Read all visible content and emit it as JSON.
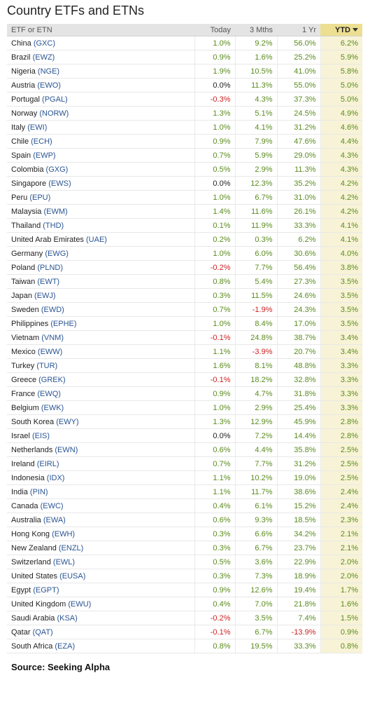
{
  "title": "Country ETFs and ETNs",
  "columns": {
    "etf": "ETF or ETN",
    "today": "Today",
    "mths3": "3 Mths",
    "yr1": "1 Yr",
    "ytd": "YTD"
  },
  "rows": [
    {
      "country": "China",
      "ticker": "(GXC)",
      "today": "1.0%",
      "mths3": "9.2%",
      "yr1": "56.0%",
      "ytd": "6.2%"
    },
    {
      "country": "Brazil",
      "ticker": "(EWZ)",
      "today": "0.9%",
      "mths3": "1.6%",
      "yr1": "25.2%",
      "ytd": "5.9%"
    },
    {
      "country": "Nigeria",
      "ticker": "(NGE)",
      "today": "1.9%",
      "mths3": "10.5%",
      "yr1": "41.0%",
      "ytd": "5.8%"
    },
    {
      "country": "Austria",
      "ticker": "(EWO)",
      "today": "0.0%",
      "mths3": "11.3%",
      "yr1": "55.0%",
      "ytd": "5.0%"
    },
    {
      "country": "Portugal",
      "ticker": "(PGAL)",
      "today": "-0.3%",
      "mths3": "4.3%",
      "yr1": "37.3%",
      "ytd": "5.0%"
    },
    {
      "country": "Norway",
      "ticker": "(NORW)",
      "today": "1.3%",
      "mths3": "5.1%",
      "yr1": "24.5%",
      "ytd": "4.9%"
    },
    {
      "country": "Italy",
      "ticker": "(EWI)",
      "today": "1.0%",
      "mths3": "4.1%",
      "yr1": "31.2%",
      "ytd": "4.6%"
    },
    {
      "country": "Chile",
      "ticker": "(ECH)",
      "today": "0.9%",
      "mths3": "7.9%",
      "yr1": "47.6%",
      "ytd": "4.4%"
    },
    {
      "country": "Spain",
      "ticker": "(EWP)",
      "today": "0.7%",
      "mths3": "5.9%",
      "yr1": "29.0%",
      "ytd": "4.3%"
    },
    {
      "country": "Colombia",
      "ticker": "(GXG)",
      "today": "0.5%",
      "mths3": "2.9%",
      "yr1": "11.3%",
      "ytd": "4.3%"
    },
    {
      "country": "Singapore",
      "ticker": "(EWS)",
      "today": "0.0%",
      "mths3": "12.3%",
      "yr1": "35.2%",
      "ytd": "4.2%"
    },
    {
      "country": "Peru",
      "ticker": "(EPU)",
      "today": "1.0%",
      "mths3": "6.7%",
      "yr1": "31.0%",
      "ytd": "4.2%"
    },
    {
      "country": "Malaysia",
      "ticker": "(EWM)",
      "today": "1.4%",
      "mths3": "11.6%",
      "yr1": "26.1%",
      "ytd": "4.2%"
    },
    {
      "country": "Thailand",
      "ticker": "(THD)",
      "today": "0.1%",
      "mths3": "11.9%",
      "yr1": "33.3%",
      "ytd": "4.1%"
    },
    {
      "country": "United Arab Emirates",
      "ticker": "(UAE)",
      "today": "0.2%",
      "mths3": "0.3%",
      "yr1": "6.2%",
      "ytd": "4.1%"
    },
    {
      "country": "Germany",
      "ticker": "(EWG)",
      "today": "1.0%",
      "mths3": "6.0%",
      "yr1": "30.6%",
      "ytd": "4.0%"
    },
    {
      "country": "Poland",
      "ticker": "(PLND)",
      "today": "-0.2%",
      "mths3": "7.7%",
      "yr1": "56.4%",
      "ytd": "3.8%"
    },
    {
      "country": "Taiwan",
      "ticker": "(EWT)",
      "today": "0.8%",
      "mths3": "5.4%",
      "yr1": "27.3%",
      "ytd": "3.5%"
    },
    {
      "country": "Japan",
      "ticker": "(EWJ)",
      "today": "0.3%",
      "mths3": "11.5%",
      "yr1": "24.6%",
      "ytd": "3.5%"
    },
    {
      "country": "Sweden",
      "ticker": "(EWD)",
      "today": "0.7%",
      "mths3": "-1.9%",
      "yr1": "24.3%",
      "ytd": "3.5%"
    },
    {
      "country": "Philippines",
      "ticker": "(EPHE)",
      "today": "1.0%",
      "mths3": "8.4%",
      "yr1": "17.0%",
      "ytd": "3.5%"
    },
    {
      "country": "Vietnam",
      "ticker": "(VNM)",
      "today": "-0.1%",
      "mths3": "24.8%",
      "yr1": "38.7%",
      "ytd": "3.4%"
    },
    {
      "country": "Mexico",
      "ticker": "(EWW)",
      "today": "1.1%",
      "mths3": "-3.9%",
      "yr1": "20.7%",
      "ytd": "3.4%"
    },
    {
      "country": "Turkey",
      "ticker": "(TUR)",
      "today": "1.6%",
      "mths3": "8.1%",
      "yr1": "48.8%",
      "ytd": "3.3%"
    },
    {
      "country": "Greece",
      "ticker": "(GREK)",
      "today": "-0.1%",
      "mths3": "18.2%",
      "yr1": "32.8%",
      "ytd": "3.3%"
    },
    {
      "country": "France",
      "ticker": "(EWQ)",
      "today": "0.9%",
      "mths3": "4.7%",
      "yr1": "31.8%",
      "ytd": "3.3%"
    },
    {
      "country": "Belgium",
      "ticker": "(EWK)",
      "today": "1.0%",
      "mths3": "2.9%",
      "yr1": "25.4%",
      "ytd": "3.3%"
    },
    {
      "country": "South Korea",
      "ticker": "(EWY)",
      "today": "1.3%",
      "mths3": "12.9%",
      "yr1": "45.9%",
      "ytd": "2.8%"
    },
    {
      "country": "Israel",
      "ticker": "(EIS)",
      "today": "0.0%",
      "mths3": "7.2%",
      "yr1": "14.4%",
      "ytd": "2.8%"
    },
    {
      "country": "Netherlands",
      "ticker": "(EWN)",
      "today": "0.6%",
      "mths3": "4.4%",
      "yr1": "35.8%",
      "ytd": "2.5%"
    },
    {
      "country": "Ireland",
      "ticker": "(EIRL)",
      "today": "0.7%",
      "mths3": "7.7%",
      "yr1": "31.2%",
      "ytd": "2.5%"
    },
    {
      "country": "Indonesia",
      "ticker": "(IDX)",
      "today": "1.1%",
      "mths3": "10.2%",
      "yr1": "19.0%",
      "ytd": "2.5%"
    },
    {
      "country": "India",
      "ticker": "(PIN)",
      "today": "1.1%",
      "mths3": "11.7%",
      "yr1": "38.6%",
      "ytd": "2.4%"
    },
    {
      "country": "Canada",
      "ticker": "(EWC)",
      "today": "0.4%",
      "mths3": "6.1%",
      "yr1": "15.2%",
      "ytd": "2.4%"
    },
    {
      "country": "Australia",
      "ticker": "(EWA)",
      "today": "0.6%",
      "mths3": "9.3%",
      "yr1": "18.5%",
      "ytd": "2.3%"
    },
    {
      "country": "Hong Kong",
      "ticker": "(EWH)",
      "today": "0.3%",
      "mths3": "6.6%",
      "yr1": "34.2%",
      "ytd": "2.1%"
    },
    {
      "country": "New Zealand",
      "ticker": "(ENZL)",
      "today": "0.3%",
      "mths3": "6.7%",
      "yr1": "23.7%",
      "ytd": "2.1%"
    },
    {
      "country": "Switzerland",
      "ticker": "(EWL)",
      "today": "0.5%",
      "mths3": "3.6%",
      "yr1": "22.9%",
      "ytd": "2.0%"
    },
    {
      "country": "United States",
      "ticker": "(EUSA)",
      "today": "0.3%",
      "mths3": "7.3%",
      "yr1": "18.9%",
      "ytd": "2.0%"
    },
    {
      "country": "Egypt",
      "ticker": "(EGPT)",
      "today": "0.9%",
      "mths3": "12.6%",
      "yr1": "19.4%",
      "ytd": "1.7%"
    },
    {
      "country": "United Kingdom",
      "ticker": "(EWU)",
      "today": "0.4%",
      "mths3": "7.0%",
      "yr1": "21.8%",
      "ytd": "1.6%"
    },
    {
      "country": "Saudi Arabia",
      "ticker": "(KSA)",
      "today": "-0.2%",
      "mths3": "3.5%",
      "yr1": "7.4%",
      "ytd": "1.5%"
    },
    {
      "country": "Qatar",
      "ticker": "(QAT)",
      "today": "-0.1%",
      "mths3": "6.7%",
      "yr1": "-13.9%",
      "ytd": "0.9%"
    },
    {
      "country": "South Africa",
      "ticker": "(EZA)",
      "today": "0.8%",
      "mths3": "19.5%",
      "yr1": "33.3%",
      "ytd": "0.8%"
    }
  ],
  "source": "Source:  Seeking Alpha",
  "colors": {
    "positive": "#5a8c1e",
    "negative": "#cc2222",
    "ticker": "#2a5592",
    "sorted_header": "#ecdf92"
  }
}
